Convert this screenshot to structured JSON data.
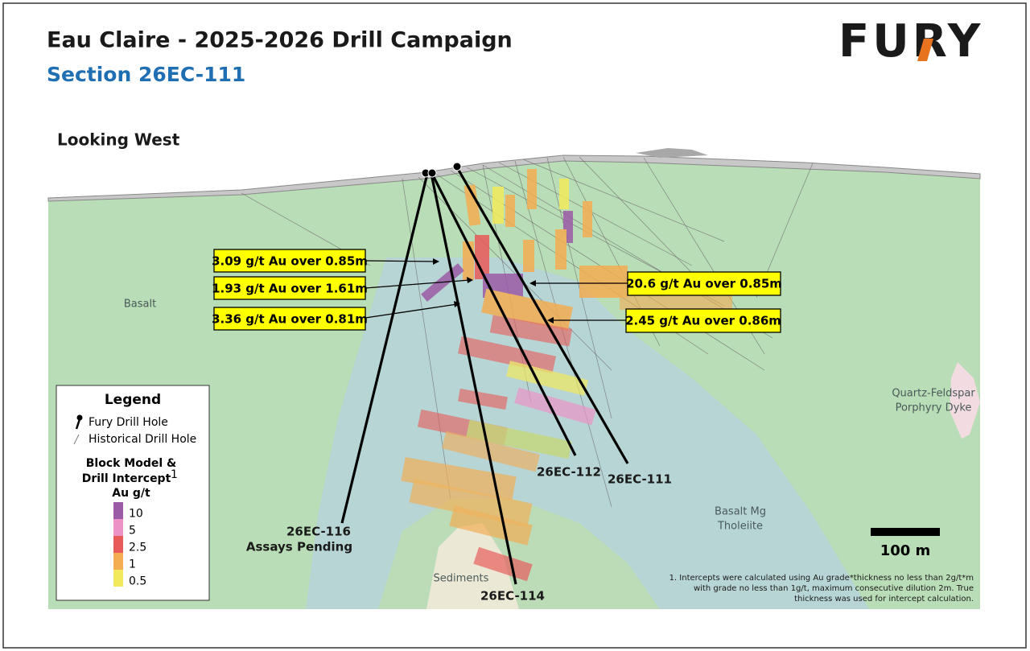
{
  "header": {
    "title": "Eau Claire - 2025-2026 Drill Campaign",
    "subtitle": "Section 26EC-111",
    "logo": "FURY"
  },
  "view": "Looking West",
  "rock_units": {
    "basalt": "Basalt",
    "dyke": [
      "Quartz-Feldspar",
      "Porphyry Dyke"
    ],
    "tholeiite": [
      "Basalt Mg",
      "Tholeiite"
    ],
    "sediments": "Sediments"
  },
  "intercepts": [
    "3.09 g/t Au over 0.85m",
    "1.93 g/t Au over 1.61m",
    "3.36 g/t Au over 0.81m",
    "20.6 g/t Au over 0.85m",
    "2.45 g/t Au over 0.86m"
  ],
  "holes": {
    "h116": [
      "26EC-116",
      "Assays Pending"
    ],
    "h112": "26EC-112",
    "h111": "26EC-111",
    "h114": "26EC-114"
  },
  "scale_bar": "100 m",
  "legend": {
    "title": "Legend",
    "fury_hole": "Fury Drill Hole",
    "historical_hole": "Historical Drill Hole",
    "block_title": [
      "Block Model &",
      "Drill Intercept"
    ],
    "footnote_mark": "1",
    "unit": "Au g/t",
    "grades": [
      {
        "label": 10,
        "color": "#9b5aa6"
      },
      {
        "label": 5,
        "color": "#ec92c6"
      },
      {
        "label": 2.5,
        "color": "#e85a5a"
      },
      {
        "label": 1,
        "color": "#f4ad52"
      },
      {
        "label": 0.5,
        "color": "#f2ea5c"
      }
    ]
  },
  "footnote": [
    "1.  Intercepts were calculated using Au grade*thickness no less than 2g/t*m",
    "with grade no less than 1g/t, maximum consecutive dilution 2m. True",
    "thickness was used for intercept calculation."
  ]
}
